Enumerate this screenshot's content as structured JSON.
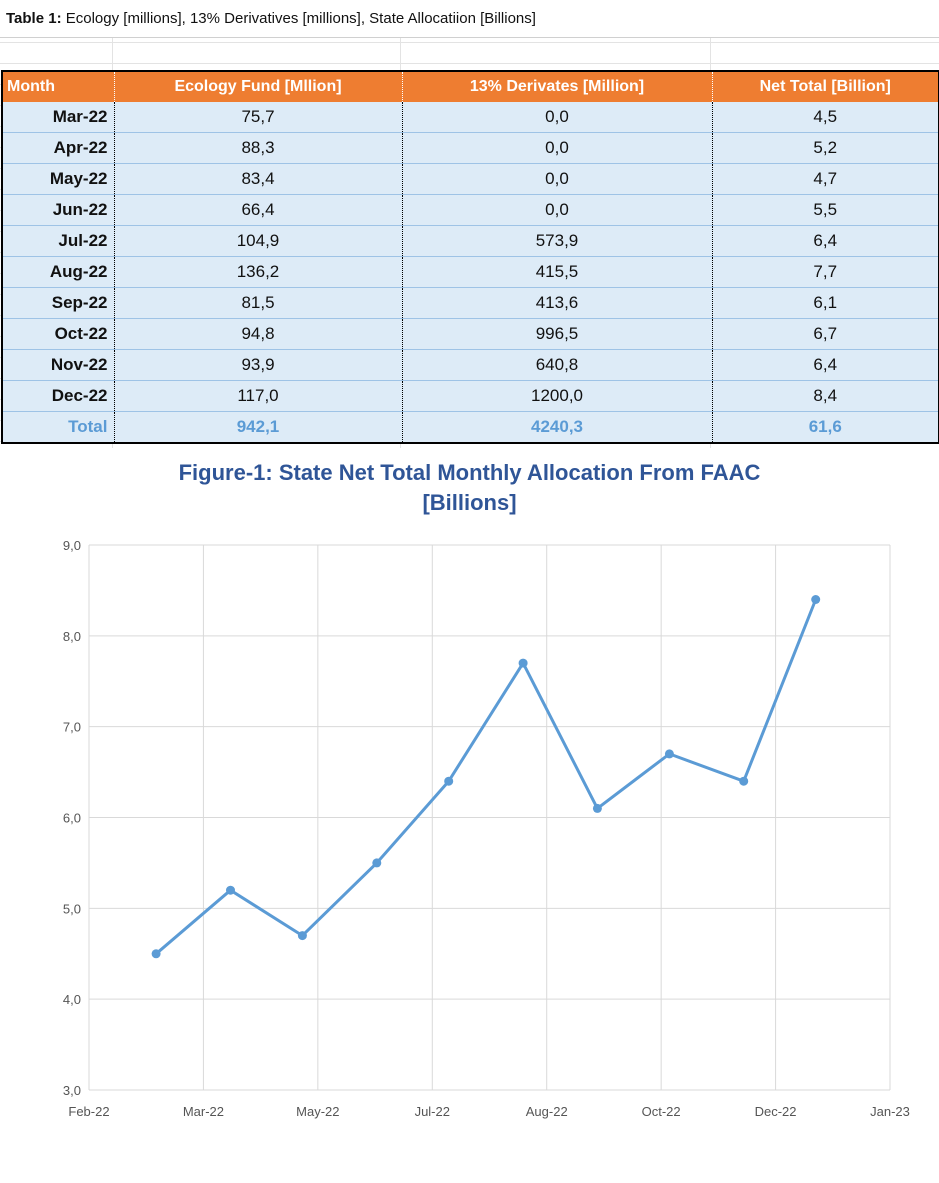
{
  "caption": {
    "label": "Table 1:",
    "text": " Ecology [millions], 13% Derivatives [millions], State Allocatiion [Billions]"
  },
  "table": {
    "headers": [
      "Month",
      "Ecology Fund [Mllion]",
      "13% Derivates [Million]",
      "Net Total [Billion]"
    ],
    "rows": [
      [
        "Mar-22",
        "75,7",
        "0,0",
        "4,5"
      ],
      [
        "Apr-22",
        "88,3",
        "0,0",
        "5,2"
      ],
      [
        "May-22",
        "83,4",
        "0,0",
        "4,7"
      ],
      [
        "Jun-22",
        "66,4",
        "0,0",
        "5,5"
      ],
      [
        "Jul-22",
        "104,9",
        "573,9",
        "6,4"
      ],
      [
        "Aug-22",
        "136,2",
        "415,5",
        "7,7"
      ],
      [
        "Sep-22",
        "81,5",
        "413,6",
        "6,1"
      ],
      [
        "Oct-22",
        "94,8",
        "996,5",
        "6,7"
      ],
      [
        "Nov-22",
        "93,9",
        "640,8",
        "6,4"
      ],
      [
        "Dec-22",
        "117,0",
        "1200,0",
        "8,4"
      ]
    ],
    "total": [
      "Total",
      "942,1",
      "4240,3",
      "61,6"
    ]
  },
  "colors": {
    "header_bg": "#ee7d31",
    "row_bg": "#ddebf7",
    "line": "#5b9bd5",
    "title": "#2f5597",
    "total_text": "#5b9bd5"
  },
  "chart_data": {
    "type": "line",
    "title": "Figure-1: State Net  Total Monthly Allocation From FAAC",
    "subtitle": "[Billions]",
    "x_tick_labels": [
      "Feb-22",
      "Mar-22",
      "May-22",
      "Jul-22",
      "Aug-22",
      "Oct-22",
      "Dec-22",
      "Jan-23"
    ],
    "y_tick_labels": [
      "3,0",
      "4,0",
      "5,0",
      "6,0",
      "7,0",
      "8,0",
      "9,0"
    ],
    "ylim": [
      3,
      9
    ],
    "x": [
      "2022-03-01",
      "2022-04-01",
      "2022-05-01",
      "2022-06-01",
      "2022-07-01",
      "2022-08-01",
      "2022-09-01",
      "2022-10-01",
      "2022-11-01",
      "2022-12-01"
    ],
    "values": [
      4.5,
      5.2,
      4.7,
      5.5,
      6.4,
      7.7,
      6.1,
      6.7,
      6.4,
      8.4
    ],
    "grid": true,
    "legend": "none"
  }
}
